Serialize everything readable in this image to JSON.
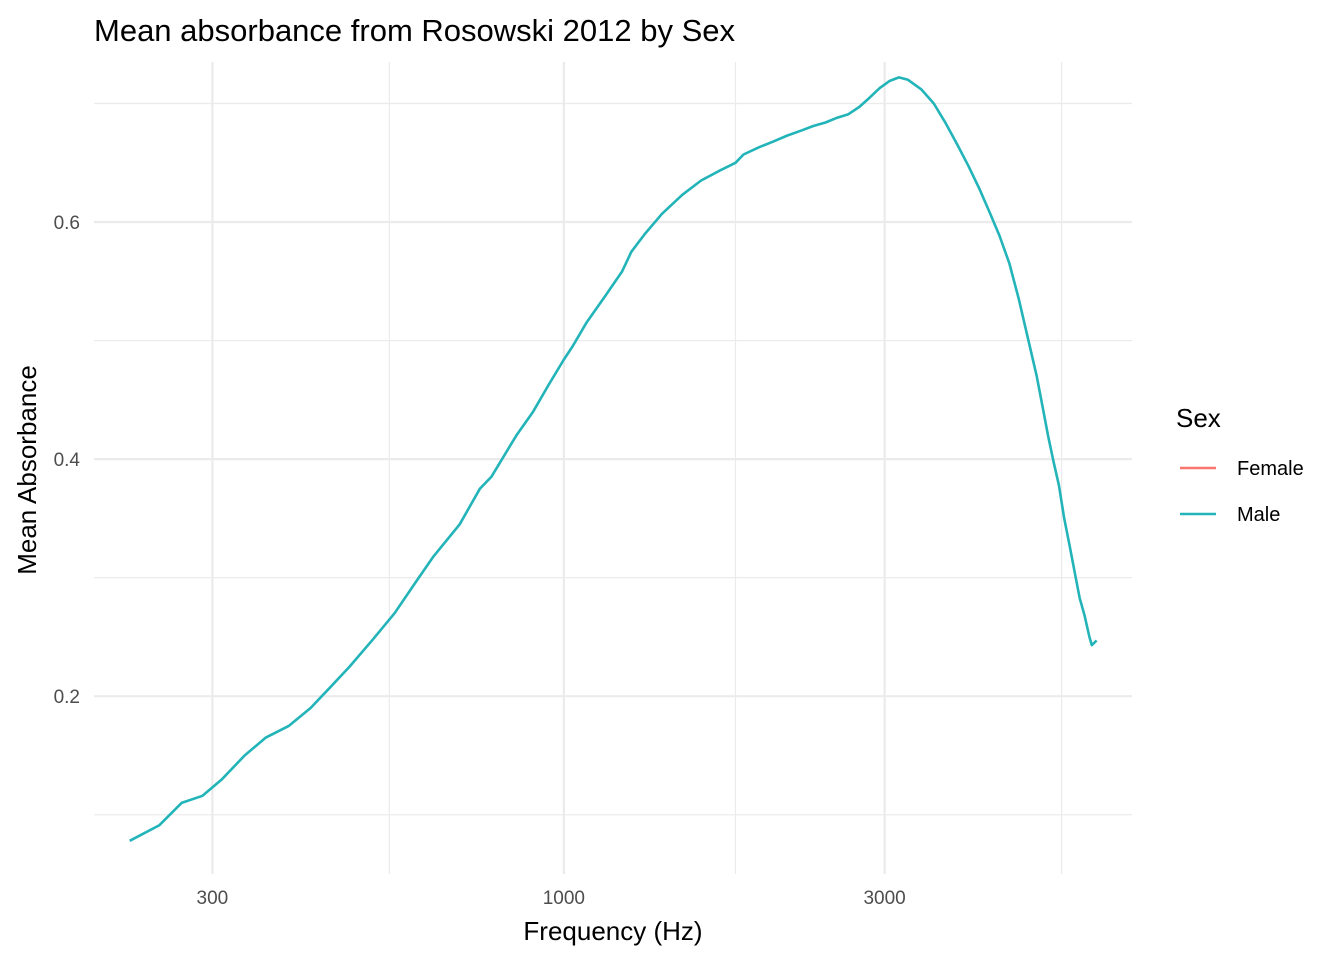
{
  "chart_data": {
    "type": "line",
    "title": "Mean absorbance from Rosowski 2012 by Sex",
    "xlabel": "Frequency (Hz)",
    "ylabel": "Mean Absorbance",
    "x_scale": "log10",
    "xlim": [
      200,
      7000
    ],
    "ylim": [
      0.05,
      0.735
    ],
    "x_ticks": [
      300,
      1000,
      3000
    ],
    "x_tick_labels": [
      "300",
      "1000",
      "3000"
    ],
    "x_minor_ticks": [
      550,
      1800,
      5500
    ],
    "y_ticks": [
      0.2,
      0.4,
      0.6
    ],
    "y_tick_labels": [
      "0.2",
      "0.4",
      "0.6"
    ],
    "y_minor_ticks": [
      0.1,
      0.3,
      0.5,
      0.7
    ],
    "grid": true,
    "legend": {
      "title": "Sex",
      "position": "right"
    },
    "series": [
      {
        "name": "Female",
        "color": "#F8766D",
        "points": []
      },
      {
        "name": "Male",
        "color": "#22B4B8",
        "points": [
          [
            226,
            0.078
          ],
          [
            250,
            0.091
          ],
          [
            270,
            0.11
          ],
          [
            290,
            0.116
          ],
          [
            310,
            0.13
          ],
          [
            335,
            0.15
          ],
          [
            360,
            0.165
          ],
          [
            390,
            0.175
          ],
          [
            420,
            0.19
          ],
          [
            450,
            0.208
          ],
          [
            480,
            0.225
          ],
          [
            520,
            0.248
          ],
          [
            560,
            0.27
          ],
          [
            600,
            0.295
          ],
          [
            640,
            0.318
          ],
          [
            700,
            0.345
          ],
          [
            750,
            0.375
          ],
          [
            780,
            0.385
          ],
          [
            850,
            0.42
          ],
          [
            900,
            0.44
          ],
          [
            950,
            0.463
          ],
          [
            1000,
            0.484
          ],
          [
            1030,
            0.495
          ],
          [
            1080,
            0.515
          ],
          [
            1150,
            0.537
          ],
          [
            1220,
            0.558
          ],
          [
            1260,
            0.575
          ],
          [
            1320,
            0.59
          ],
          [
            1400,
            0.607
          ],
          [
            1500,
            0.623
          ],
          [
            1600,
            0.635
          ],
          [
            1700,
            0.643
          ],
          [
            1800,
            0.65
          ],
          [
            1850,
            0.657
          ],
          [
            1950,
            0.663
          ],
          [
            2050,
            0.668
          ],
          [
            2150,
            0.673
          ],
          [
            2250,
            0.677
          ],
          [
            2350,
            0.681
          ],
          [
            2450,
            0.684
          ],
          [
            2550,
            0.688
          ],
          [
            2650,
            0.691
          ],
          [
            2750,
            0.697
          ],
          [
            2850,
            0.705
          ],
          [
            2950,
            0.713
          ],
          [
            3050,
            0.719
          ],
          [
            3150,
            0.722
          ],
          [
            3250,
            0.72
          ],
          [
            3400,
            0.712
          ],
          [
            3550,
            0.7
          ],
          [
            3700,
            0.683
          ],
          [
            3850,
            0.665
          ],
          [
            4000,
            0.647
          ],
          [
            4150,
            0.628
          ],
          [
            4300,
            0.608
          ],
          [
            4450,
            0.588
          ],
          [
            4600,
            0.565
          ],
          [
            4750,
            0.535
          ],
          [
            4900,
            0.502
          ],
          [
            5050,
            0.47
          ],
          [
            5150,
            0.445
          ],
          [
            5250,
            0.42
          ],
          [
            5350,
            0.398
          ],
          [
            5450,
            0.378
          ],
          [
            5550,
            0.35
          ],
          [
            5650,
            0.328
          ],
          [
            5750,
            0.305
          ],
          [
            5850,
            0.283
          ],
          [
            5950,
            0.268
          ],
          [
            6050,
            0.25
          ],
          [
            6100,
            0.243
          ],
          [
            6200,
            0.247
          ]
        ]
      }
    ]
  }
}
